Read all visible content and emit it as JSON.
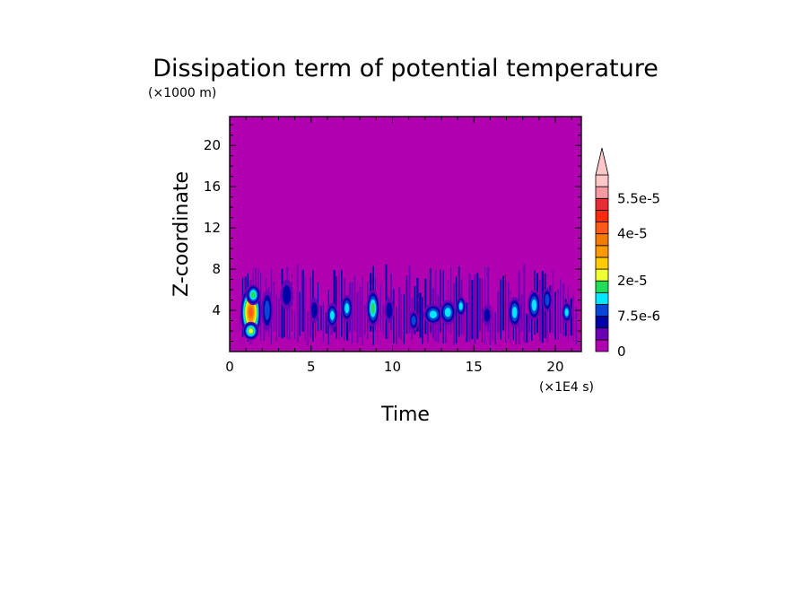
{
  "chart_data": {
    "type": "heatmap",
    "title": "Dissipation term of potential temperature",
    "xlabel": "Time",
    "ylabel": "Z-coordinate",
    "x_unit": "(×1E4 s)",
    "y_unit": "(×1000 m)",
    "xlim": [
      0,
      21.6
    ],
    "ylim": [
      0,
      22.8
    ],
    "x_ticks": [
      "0",
      "5",
      "10",
      "15",
      "20"
    ],
    "x_tick_values": [
      0,
      5,
      10,
      15,
      20
    ],
    "y_ticks": [
      "4",
      "8",
      "12",
      "16",
      "20"
    ],
    "y_tick_values": [
      4,
      8,
      12,
      16,
      20
    ],
    "grid": false,
    "colorbar": {
      "levels": [
        0,
        2.5e-06,
        5e-06,
        7.5e-06,
        1e-05,
        1.5e-05,
        2e-05,
        2.5e-05,
        3e-05,
        3.5e-05,
        4e-05,
        4.5e-05,
        5e-05,
        5.5e-05,
        6e-05
      ],
      "colors": [
        "#b100b0",
        "#6c00b4",
        "#0000a8",
        "#0a46d6",
        "#00e8ff",
        "#22dd5a",
        "#f0ff30",
        "#ffcc00",
        "#ff9900",
        "#f37c00",
        "#ff5a1a",
        "#ff2a0d",
        "#e82c38",
        "#f59aa3",
        "#ffc8c8"
      ],
      "extend": "max",
      "labels": [
        "5.5e-5",
        "4e-5",
        "2e-5",
        "7.5e-6",
        "0"
      ],
      "label_values": [
        5.5e-05,
        4e-05,
        2e-05,
        7.5e-06,
        0
      ]
    },
    "field_summary": "Background ≈ 0 everywhere above ~8 km; strongest dissipation (up to ~4e-5) near t≈1–1.5×1E4 s at z≈1–6 km; scattered weaker cells (≤2e-5) below ~8 km for the rest of the period",
    "features": [
      {
        "t": 1.3,
        "z": 3.8,
        "w": 0.65,
        "h": 2.6,
        "v": 4.2e-05
      },
      {
        "t": 1.3,
        "z": 2.0,
        "w": 0.5,
        "h": 0.9,
        "v": 2.2e-05
      },
      {
        "t": 1.45,
        "z": 5.5,
        "w": 0.45,
        "h": 1.0,
        "v": 1.6e-05
      },
      {
        "t": 2.3,
        "z": 4.0,
        "w": 0.35,
        "h": 2.0,
        "v": 8e-06
      },
      {
        "t": 3.5,
        "z": 5.5,
        "w": 0.4,
        "h": 1.5,
        "v": 7e-06
      },
      {
        "t": 5.2,
        "z": 4.0,
        "w": 0.3,
        "h": 1.2,
        "v": 5e-06
      },
      {
        "t": 6.3,
        "z": 3.5,
        "w": 0.35,
        "h": 1.2,
        "v": 1e-05
      },
      {
        "t": 7.2,
        "z": 4.2,
        "w": 0.35,
        "h": 1.3,
        "v": 1e-05
      },
      {
        "t": 8.8,
        "z": 4.2,
        "w": 0.4,
        "h": 1.8,
        "v": 1.6e-05
      },
      {
        "t": 9.8,
        "z": 4.0,
        "w": 0.3,
        "h": 1.2,
        "v": 6e-06
      },
      {
        "t": 11.3,
        "z": 3.0,
        "w": 0.3,
        "h": 1.0,
        "v": 8e-06
      },
      {
        "t": 12.5,
        "z": 3.6,
        "w": 0.6,
        "h": 1.0,
        "v": 1.1e-05
      },
      {
        "t": 13.4,
        "z": 3.8,
        "w": 0.5,
        "h": 1.2,
        "v": 1.05e-05
      },
      {
        "t": 14.2,
        "z": 4.4,
        "w": 0.3,
        "h": 1.0,
        "v": 1.1e-05
      },
      {
        "t": 15.8,
        "z": 3.5,
        "w": 0.3,
        "h": 1.0,
        "v": 6e-06
      },
      {
        "t": 17.5,
        "z": 3.8,
        "w": 0.4,
        "h": 1.5,
        "v": 1e-05
      },
      {
        "t": 18.7,
        "z": 4.5,
        "w": 0.4,
        "h": 1.5,
        "v": 1.1e-05
      },
      {
        "t": 19.5,
        "z": 5.0,
        "w": 0.3,
        "h": 1.2,
        "v": 9e-06
      },
      {
        "t": 20.7,
        "z": 3.8,
        "w": 0.3,
        "h": 1.0,
        "v": 1e-05
      }
    ]
  }
}
